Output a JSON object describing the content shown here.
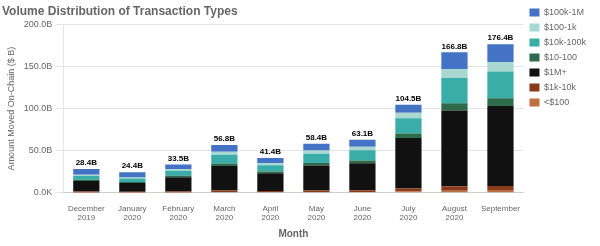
{
  "chart_data": {
    "type": "bar",
    "stacked": true,
    "title": "Volume Distribution of Transaction Types",
    "xlabel": "Month",
    "ylabel": "Amount Moved On-Chain ($ B)",
    "categories": [
      "December 2019",
      "January 2020",
      "February 2020",
      "March 2020",
      "April 2020",
      "May 2020",
      "June 2020",
      "July 2020",
      "August 2020",
      "September"
    ],
    "series": [
      {
        "name": "<$100",
        "color": "#c07040",
        "values": [
          0.4,
          0.3,
          0.4,
          0.8,
          0.6,
          0.8,
          0.9,
          1.5,
          2.3,
          2.4
        ]
      },
      {
        "name": "$1k-10k",
        "color": "#8b3a1a",
        "values": [
          1.0,
          0.8,
          1.1,
          2.0,
          1.5,
          2.0,
          2.2,
          3.5,
          5.5,
          5.8
        ]
      },
      {
        "name": "$1M+",
        "color": "#111111",
        "values": [
          12.5,
          10.5,
          17.0,
          29.0,
          21.0,
          29.5,
          32.0,
          60.0,
          90.0,
          95.0
        ]
      },
      {
        "name": "$10-100",
        "color": "#2d6b4a",
        "values": [
          1.5,
          1.3,
          1.8,
          3.0,
          2.2,
          3.0,
          3.3,
          5.5,
          8.5,
          9.0
        ]
      },
      {
        "name": "$10k-100k",
        "color": "#3aada8",
        "values": [
          4.5,
          4.0,
          6.0,
          10.5,
          7.5,
          11.0,
          12.0,
          18.0,
          30.0,
          32.0
        ]
      },
      {
        "name": "$100-1k",
        "color": "#a8d8d0",
        "values": [
          1.5,
          1.3,
          2.0,
          3.5,
          2.6,
          3.8,
          4.2,
          6.5,
          10.5,
          11.2
        ]
      },
      {
        "name": "$100k-1M",
        "color": "#4472c4",
        "values": [
          7.0,
          6.2,
          5.2,
          8.0,
          6.0,
          8.3,
          8.5,
          9.5,
          20.0,
          21.0
        ]
      }
    ],
    "total_labels": [
      "28.4B",
      "24.4B",
      "33.5B",
      "56.8B",
      "41.4B",
      "58.4B",
      "63.1B",
      "104.5B",
      "166.8B",
      "176.4B"
    ],
    "ylim": [
      0,
      200
    ],
    "yticks": [
      {
        "value": 0,
        "label": "0.0K"
      },
      {
        "value": 50,
        "label": "50.0B"
      },
      {
        "value": 100,
        "label": "100.0B"
      },
      {
        "value": 150,
        "label": "150.0B"
      },
      {
        "value": 200,
        "label": "200.0B"
      }
    ],
    "grid": true,
    "legend": "right"
  }
}
